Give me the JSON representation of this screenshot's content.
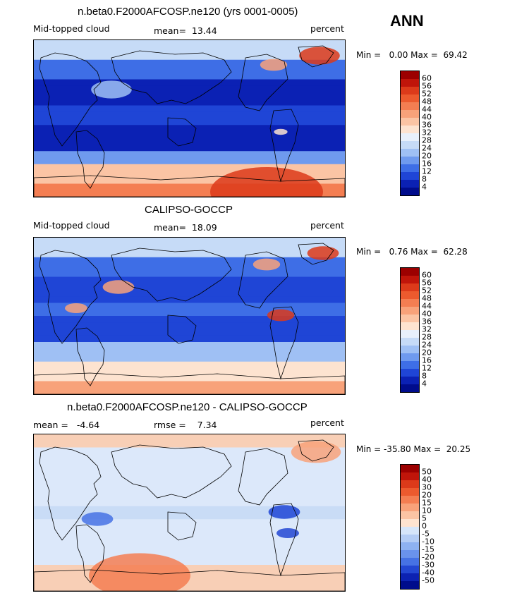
{
  "season": "ANN",
  "panels": [
    {
      "title": "n.beta0.F2000AFCOSP.ne120 (yrs 0001-0005)",
      "left_label": "Mid-topped cloud",
      "center_label": "mean=  13.44",
      "units": "percent",
      "minmax": "Min =   0.00 Max =  69.42",
      "colorbar": {
        "labels": [
          "60",
          "56",
          "52",
          "48",
          "44",
          "40",
          "36",
          "32",
          "28",
          "24",
          "20",
          "16",
          "12",
          "8",
          "4"
        ],
        "colors": [
          "#9c0000",
          "#c0150a",
          "#dc3a1a",
          "#ec5a2e",
          "#f47e52",
          "#f8a27a",
          "#fbc4a4",
          "#fde3d0",
          "#e8f0fb",
          "#c6dbf7",
          "#9fc0f4",
          "#6f9aee",
          "#3e6ee6",
          "#1f45d6",
          "#0b21b4",
          "#000c8c"
        ]
      },
      "theme": "model"
    },
    {
      "title": "CALIPSO-GOCCP",
      "left_label": "Mid-topped cloud",
      "center_label": "mean=  18.09",
      "units": "percent",
      "minmax": "Min =   0.76 Max =  62.28",
      "colorbar": {
        "labels": [
          "60",
          "56",
          "52",
          "48",
          "44",
          "40",
          "36",
          "32",
          "28",
          "24",
          "20",
          "16",
          "12",
          "8",
          "4"
        ],
        "colors": [
          "#9c0000",
          "#c0150a",
          "#dc3a1a",
          "#ec5a2e",
          "#f47e52",
          "#f8a27a",
          "#fbc4a4",
          "#fde3d0",
          "#e8f0fb",
          "#c6dbf7",
          "#9fc0f4",
          "#6f9aee",
          "#3e6ee6",
          "#1f45d6",
          "#0b21b4",
          "#000c8c"
        ]
      },
      "theme": "obs"
    },
    {
      "title": "n.beta0.F2000AFCOSP.ne120 - CALIPSO-GOCCP",
      "left_label": "mean =   -4.64",
      "center_label": "rmse =    7.34",
      "units": "percent",
      "minmax": "Min = -35.80 Max =  20.25",
      "colorbar": {
        "labels": [
          "50",
          "40",
          "30",
          "20",
          "15",
          "10",
          "5",
          "0",
          "-5",
          "-10",
          "-15",
          "-20",
          "-30",
          "-40",
          "-50"
        ],
        "colors": [
          "#9c0000",
          "#c0150a",
          "#dc3a1a",
          "#ec5a2e",
          "#f47e52",
          "#f8a27a",
          "#fbc4a4",
          "#fde3d0",
          "#d6e6fa",
          "#b4cdf5",
          "#8eb2f1",
          "#6a93ec",
          "#4672e4",
          "#2347d2",
          "#0c22b2",
          "#000c8c"
        ]
      },
      "theme": "diff"
    }
  ]
}
